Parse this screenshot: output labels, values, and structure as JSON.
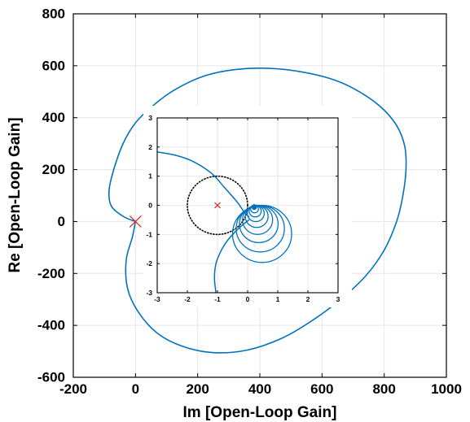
{
  "chart_data": [
    {
      "type": "line",
      "title": "",
      "xlabel": "Im [Open-Loop Gain]",
      "ylabel": "Re [Open-Loop Gain]",
      "xlim": [
        -200,
        1000
      ],
      "ylim": [
        -600,
        800
      ],
      "xticks": [
        -200,
        0,
        200,
        400,
        600,
        800,
        1000
      ],
      "yticks": [
        -600,
        -400,
        -200,
        0,
        200,
        400,
        600,
        800
      ],
      "xtick_labels": [
        "-200",
        "0",
        "200",
        "400",
        "600",
        "800",
        "1000"
      ],
      "ytick_labels": [
        "-600",
        "-400",
        "-200",
        "0",
        "200",
        "400",
        "600",
        "800"
      ],
      "grid": true,
      "series": [
        {
          "color": "#0072BD",
          "points": [
            [
              0,
              0
            ],
            [
              -40,
              20
            ],
            [
              -78,
              60
            ],
            [
              -85,
              120
            ],
            [
              -70,
              200
            ],
            [
              -40,
              300
            ],
            [
              0,
              380
            ],
            [
              60,
              450
            ],
            [
              130,
              510
            ],
            [
              220,
              560
            ],
            [
              320,
              585
            ],
            [
              430,
              590
            ],
            [
              540,
              575
            ],
            [
              640,
              545
            ],
            [
              720,
              500
            ],
            [
              790,
              440
            ],
            [
              840,
              370
            ],
            [
              866,
              290
            ],
            [
              870,
              200
            ],
            [
              860,
              100
            ],
            [
              840,
              0
            ],
            [
              800,
              -110
            ],
            [
              740,
              -210
            ],
            [
              660,
              -300
            ],
            [
              570,
              -380
            ],
            [
              470,
              -450
            ],
            [
              360,
              -495
            ],
            [
              250,
              -505
            ],
            [
              150,
              -480
            ],
            [
              70,
              -430
            ],
            [
              10,
              -350
            ],
            [
              -25,
              -260
            ],
            [
              -30,
              -150
            ],
            [
              -10,
              -60
            ],
            [
              0,
              0
            ]
          ]
        }
      ],
      "markers": [
        {
          "x": 0,
          "y": 0,
          "symbol": "x",
          "color": "#E0201B"
        }
      ]
    },
    {
      "type": "line",
      "title": "",
      "xlim": [
        -3,
        3
      ],
      "ylim": [
        -3,
        3
      ],
      "xticks": [
        -3,
        -2,
        -1,
        0,
        1,
        2,
        3
      ],
      "yticks": [
        -3,
        -2,
        -1,
        0,
        1,
        2,
        3
      ],
      "xtick_labels": [
        "-3",
        "-2",
        "-1",
        "0",
        "1",
        "2",
        "3"
      ],
      "ytick_labels": [
        "-3",
        "-2",
        "-1",
        "0",
        "1",
        "2",
        "3"
      ],
      "grid": true,
      "series": [
        {
          "color": "#0072BD",
          "points": [
            [
              -3,
              1.83
            ],
            [
              -2.4,
              1.72
            ],
            [
              -1.8,
              1.5
            ],
            [
              -1.2,
              1.1
            ],
            [
              -0.8,
              0.65
            ],
            [
              -0.5,
              0.3
            ],
            [
              -0.3,
              0.05
            ],
            [
              -0.1,
              -0.25
            ],
            [
              0.05,
              -0.4
            ]
          ]
        },
        {
          "color": "#0072BD",
          "points": [
            [
              -1.05,
              -3
            ],
            [
              -1.1,
              -2.5
            ],
            [
              -1.05,
              -2.0
            ],
            [
              -0.9,
              -1.6
            ],
            [
              -0.7,
              -1.25
            ],
            [
              -0.45,
              -0.95
            ],
            [
              -0.2,
              -0.7
            ],
            [
              0.05,
              -0.5
            ]
          ]
        }
      ],
      "spiral": {
        "color": "#0072BD",
        "circles": [
          {
            "cx": 0.48,
            "cy": -0.98,
            "r": 0.98
          },
          {
            "cx": 0.42,
            "cy": -0.8,
            "r": 0.8
          },
          {
            "cx": 0.37,
            "cy": -0.64,
            "r": 0.64
          },
          {
            "cx": 0.33,
            "cy": -0.5,
            "r": 0.5
          },
          {
            "cx": 0.3,
            "cy": -0.38,
            "r": 0.38
          },
          {
            "cx": 0.27,
            "cy": -0.28,
            "r": 0.28
          },
          {
            "cx": 0.25,
            "cy": -0.2,
            "r": 0.2
          },
          {
            "cx": 0.23,
            "cy": -0.13,
            "r": 0.13
          },
          {
            "cx": 0.22,
            "cy": -0.07,
            "r": 0.07
          }
        ]
      },
      "unit_circle": {
        "cx": -1,
        "cy": 0,
        "r": 1,
        "style": "dotted",
        "color": "#000000"
      },
      "markers": [
        {
          "x": -1,
          "y": 0,
          "symbol": "x",
          "color": "#E0201B"
        }
      ]
    }
  ]
}
